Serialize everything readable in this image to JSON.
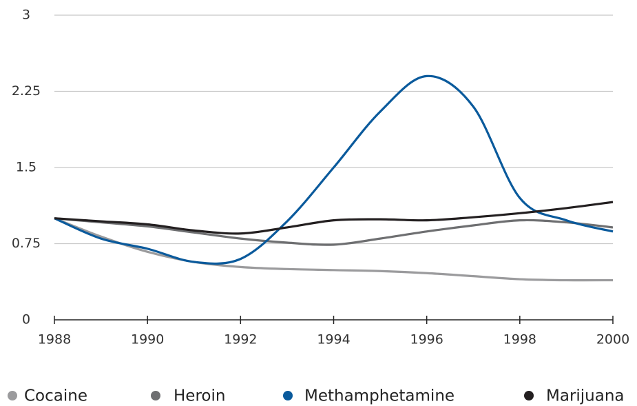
{
  "chart_data": {
    "type": "line",
    "x": [
      1988,
      1989,
      1990,
      1991,
      1992,
      1993,
      1994,
      1995,
      1996,
      1997,
      1998,
      1999,
      2000
    ],
    "series": [
      {
        "name": "Cocaine",
        "color": "#9b9b9d",
        "values": [
          1.0,
          0.82,
          0.67,
          0.57,
          0.52,
          0.5,
          0.49,
          0.48,
          0.46,
          0.43,
          0.4,
          0.39,
          0.39
        ]
      },
      {
        "name": "Heroin",
        "color": "#6e6f71",
        "values": [
          1.0,
          0.96,
          0.92,
          0.86,
          0.8,
          0.76,
          0.74,
          0.8,
          0.87,
          0.93,
          0.98,
          0.96,
          0.91
        ]
      },
      {
        "name": "Methamphetamine",
        "color": "#0a5a9c",
        "values": [
          1.0,
          0.8,
          0.7,
          0.57,
          0.6,
          0.97,
          1.5,
          2.05,
          2.4,
          2.1,
          1.2,
          0.98,
          0.87
        ]
      },
      {
        "name": "Marijuana",
        "color": "#231f20",
        "values": [
          1.0,
          0.97,
          0.94,
          0.88,
          0.85,
          0.91,
          0.98,
          0.99,
          0.98,
          1.01,
          1.05,
          1.1,
          1.16
        ]
      }
    ],
    "xlim": [
      1988,
      2000
    ],
    "xticks": [
      1988,
      1990,
      1992,
      1994,
      1996,
      1998,
      2000
    ],
    "ylim": [
      0,
      3
    ],
    "yticks": [
      0,
      0.75,
      1.5,
      2.25,
      3
    ],
    "grid": true,
    "legend": "bottom"
  }
}
